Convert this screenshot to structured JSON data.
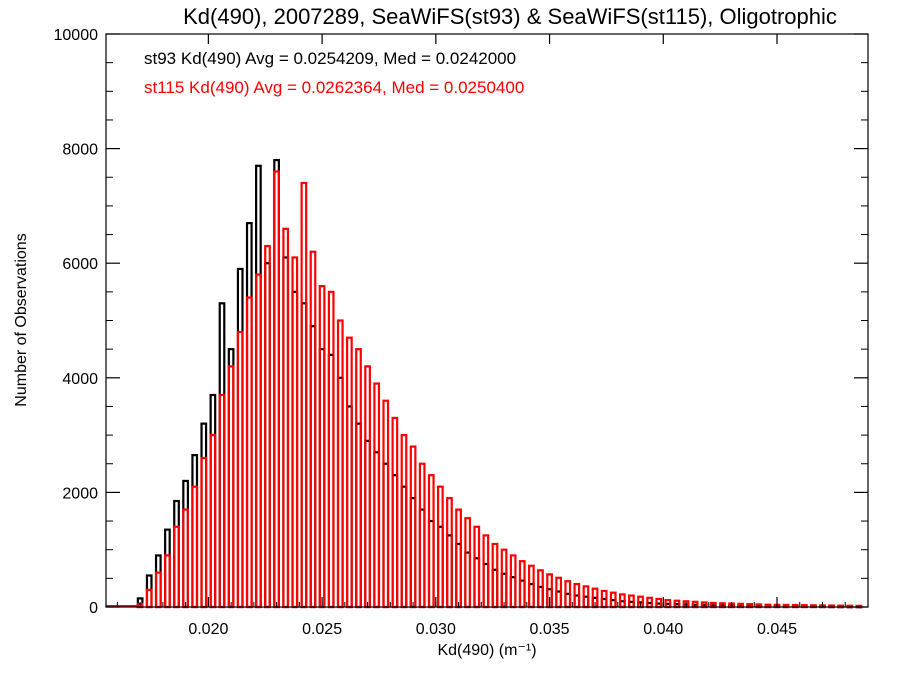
{
  "chart_data": {
    "type": "bar",
    "title": "Kd(490), 2007289, SeaWiFS(st93) & SeaWiFS(st115), Oligotrophic",
    "xlabel": "Kd(490) (m⁻¹)",
    "ylabel": "Number of Observations",
    "xlim": [
      0.0155,
      0.049
    ],
    "ylim": [
      0,
      10000
    ],
    "x_ticks": [
      0.02,
      0.025,
      0.03,
      0.035,
      0.04,
      0.045
    ],
    "x_tick_labels": [
      "0.020",
      "0.025",
      "0.030",
      "0.035",
      "0.040",
      "0.045"
    ],
    "y_ticks": [
      0,
      2000,
      4000,
      6000,
      8000,
      10000
    ],
    "y_tick_labels": [
      "0",
      "2000",
      "4000",
      "6000",
      "8000",
      "10000"
    ],
    "bin_width": 0.0002,
    "grid": false,
    "annotations": [
      {
        "text": "st93 Kd(490) Avg = 0.0254209, Med = 0.0242000",
        "color": "#000000"
      },
      {
        "text": "st115 Kd(490) Avg = 0.0262364, Med = 0.0250400",
        "color": "#ff0000"
      }
    ],
    "series": [
      {
        "color": "#000000",
        "x": [
          0.017,
          0.0174,
          0.0178,
          0.0182,
          0.0186,
          0.019,
          0.0194,
          0.0198,
          0.0202,
          0.0206,
          0.021,
          0.0214,
          0.0218,
          0.0222,
          0.0226,
          0.023,
          0.0234,
          0.0238,
          0.0242,
          0.0246,
          0.025,
          0.0254,
          0.0258,
          0.0262,
          0.0266,
          0.027,
          0.0274,
          0.0278,
          0.0282,
          0.0286,
          0.029,
          0.0294,
          0.0298,
          0.0302,
          0.0306,
          0.031,
          0.0314,
          0.0318,
          0.0322,
          0.0326,
          0.033,
          0.0334,
          0.0338,
          0.0342,
          0.0346,
          0.035,
          0.0354,
          0.0358,
          0.0362,
          0.0366,
          0.037,
          0.0374,
          0.0378,
          0.0382,
          0.0386,
          0.039,
          0.0394,
          0.0398,
          0.0402,
          0.0406,
          0.041,
          0.0414,
          0.0418,
          0.0422,
          0.0426,
          0.043,
          0.0434,
          0.0438,
          0.0442,
          0.0446,
          0.045,
          0.0454,
          0.0458,
          0.0462,
          0.0466,
          0.047,
          0.0474,
          0.0478,
          0.0482,
          0.0486
        ],
        "values": [
          150,
          550,
          900,
          1350,
          1850,
          2200,
          2650,
          3200,
          3700,
          5300,
          4500,
          5900,
          6700,
          7700,
          6000,
          7800,
          6100,
          5500,
          5300,
          4900,
          4500,
          4400,
          4000,
          3500,
          3200,
          2900,
          2700,
          2500,
          2300,
          2100,
          1900,
          1700,
          1500,
          1400,
          1250,
          1100,
          950,
          850,
          750,
          650,
          580,
          520,
          460,
          400,
          350,
          310,
          270,
          230,
          200,
          180,
          160,
          140,
          120,
          100,
          90,
          80,
          70,
          60,
          55,
          50,
          45,
          40,
          35,
          30,
          28,
          25,
          22,
          20,
          18,
          16,
          14,
          12,
          11,
          10,
          9,
          8,
          7,
          6,
          5,
          5
        ]
      },
      {
        "color": "#ff0000",
        "x": [
          0.017,
          0.0174,
          0.0178,
          0.0182,
          0.0186,
          0.019,
          0.0194,
          0.0198,
          0.0202,
          0.0206,
          0.021,
          0.0214,
          0.0218,
          0.0222,
          0.0226,
          0.023,
          0.0234,
          0.0238,
          0.0242,
          0.0246,
          0.025,
          0.0254,
          0.0258,
          0.0262,
          0.0266,
          0.027,
          0.0274,
          0.0278,
          0.0282,
          0.0286,
          0.029,
          0.0294,
          0.0298,
          0.0302,
          0.0306,
          0.031,
          0.0314,
          0.0318,
          0.0322,
          0.0326,
          0.033,
          0.0334,
          0.0338,
          0.0342,
          0.0346,
          0.035,
          0.0354,
          0.0358,
          0.0362,
          0.0366,
          0.037,
          0.0374,
          0.0378,
          0.0382,
          0.0386,
          0.039,
          0.0394,
          0.0398,
          0.0402,
          0.0406,
          0.041,
          0.0414,
          0.0418,
          0.0422,
          0.0426,
          0.043,
          0.0434,
          0.0438,
          0.0442,
          0.0446,
          0.045,
          0.0454,
          0.0458,
          0.0462,
          0.0466,
          0.047,
          0.0474,
          0.0478,
          0.0482,
          0.0486
        ],
        "values": [
          50,
          300,
          600,
          900,
          1400,
          1700,
          2100,
          2600,
          3000,
          3700,
          4200,
          4800,
          5400,
          5800,
          6300,
          7600,
          6600,
          6100,
          7400,
          6200,
          5600,
          5500,
          5000,
          4700,
          4500,
          4200,
          3900,
          3600,
          3300,
          3000,
          2800,
          2500,
          2300,
          2100,
          1900,
          1700,
          1550,
          1400,
          1250,
          1100,
          1000,
          900,
          800,
          720,
          640,
          570,
          510,
          450,
          400,
          360,
          320,
          280,
          250,
          220,
          200,
          180,
          160,
          140,
          120,
          110,
          100,
          90,
          80,
          70,
          65,
          60,
          55,
          50,
          45,
          40,
          38,
          36,
          34,
          32,
          30,
          28,
          26,
          24,
          22,
          20
        ]
      }
    ]
  }
}
